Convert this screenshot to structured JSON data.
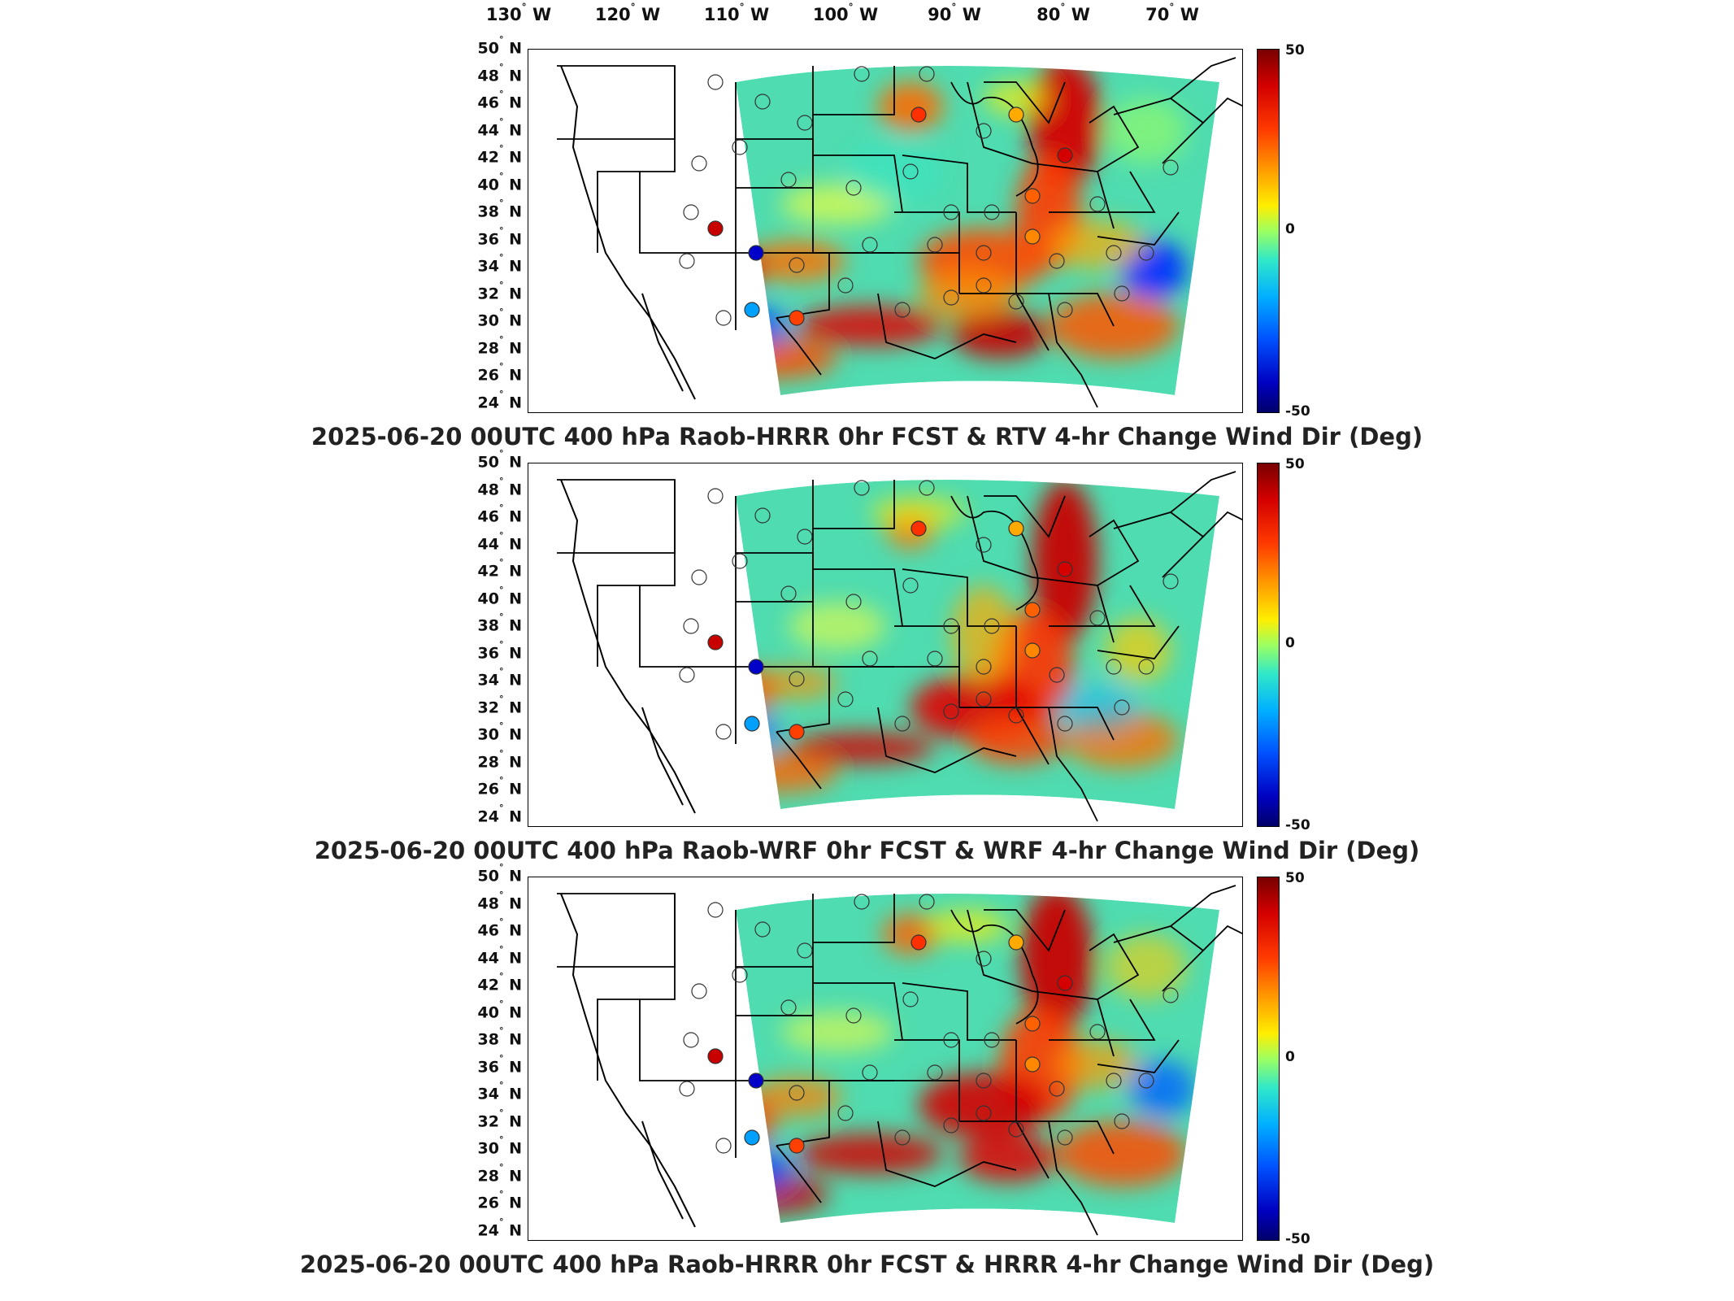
{
  "longitude_labels": [
    {
      "deg": "130",
      "dir": "W"
    },
    {
      "deg": "120",
      "dir": "W"
    },
    {
      "deg": "110",
      "dir": "W"
    },
    {
      "deg": "100",
      "dir": "W"
    },
    {
      "deg": "90",
      "dir": "W"
    },
    {
      "deg": "80",
      "dir": "W"
    },
    {
      "deg": "70",
      "dir": "W"
    }
  ],
  "latitude_labels": [
    {
      "deg": "50",
      "dir": "N"
    },
    {
      "deg": "48",
      "dir": "N"
    },
    {
      "deg": "46",
      "dir": "N"
    },
    {
      "deg": "44",
      "dir": "N"
    },
    {
      "deg": "42",
      "dir": "N"
    },
    {
      "deg": "40",
      "dir": "N"
    },
    {
      "deg": "38",
      "dir": "N"
    },
    {
      "deg": "36",
      "dir": "N"
    },
    {
      "deg": "34",
      "dir": "N"
    },
    {
      "deg": "32",
      "dir": "N"
    },
    {
      "deg": "30",
      "dir": "N"
    },
    {
      "deg": "28",
      "dir": "N"
    },
    {
      "deg": "26",
      "dir": "N"
    },
    {
      "deg": "24",
      "dir": "N"
    }
  ],
  "colorbar": {
    "max": "50",
    "mid": "0",
    "min": "-50"
  },
  "panels": [
    {
      "title": "2025-06-20 00UTC 400 hPa Raob-HRRR 0hr FCST & RTV 4-hr Change Wind Dir (Deg)"
    },
    {
      "title": "2025-06-20 00UTC 400 hPa Raob-WRF 0hr FCST & WRF 4-hr Change Wind Dir (Deg)"
    },
    {
      "title": "2025-06-20 00UTC 400 hPa Raob-HRRR 0hr FCST & HRRR 4-hr Change Wind Dir (Deg)"
    }
  ],
  "colors": {
    "field_base": "#4fdcb0",
    "warm": "#ff6a00",
    "hot": "#c80000",
    "cool": "#00a8ff",
    "cold": "#0000c8",
    "border": "#000000"
  }
}
